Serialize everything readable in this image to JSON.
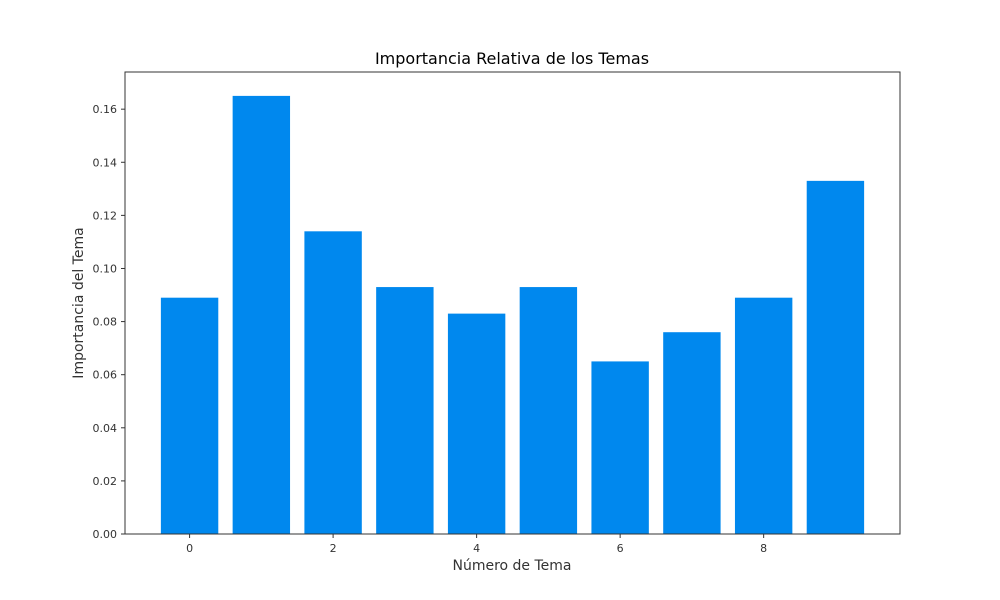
{
  "chart_data": {
    "type": "bar",
    "title": "Importancia Relativa de los Temas",
    "xlabel": "Número de Tema",
    "ylabel": "Importancia del Tema",
    "categories": [
      "0",
      "1",
      "2",
      "3",
      "4",
      "5",
      "6",
      "7",
      "8",
      "9"
    ],
    "values": [
      0.089,
      0.165,
      0.114,
      0.093,
      0.083,
      0.093,
      0.065,
      0.076,
      0.089,
      0.133
    ],
    "ylim": [
      0,
      0.174
    ],
    "xlim": [
      -0.9,
      9.9
    ],
    "x_ticks": [
      0,
      2,
      4,
      6,
      8
    ],
    "y_ticks": [
      0.0,
      0.02,
      0.04,
      0.06,
      0.08,
      0.1,
      0.12,
      0.14,
      0.16
    ],
    "y_tick_labels": [
      "0.00",
      "0.02",
      "0.04",
      "0.06",
      "0.08",
      "0.10",
      "0.12",
      "0.14",
      "0.16"
    ],
    "bar_color": "#0088EE",
    "grid": false
  }
}
